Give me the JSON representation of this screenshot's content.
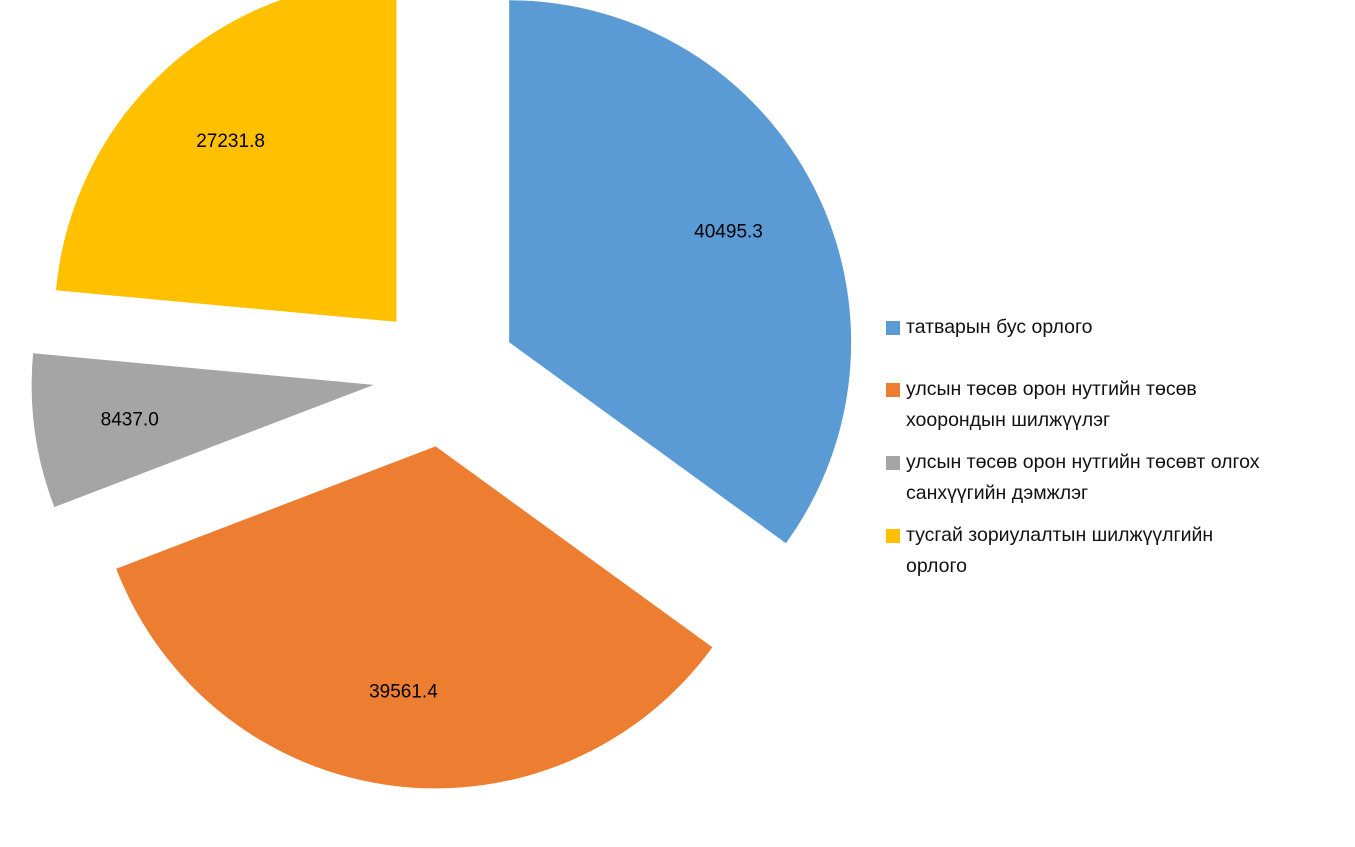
{
  "chart_data": {
    "type": "pie",
    "exploded": true,
    "categories": [
      "татварын бус орлого",
      "улсын төсөв орон нутгийн төсөв хоорондын шилжүүлэг",
      "улсын төсөв орон нутгийн төсөвт олгох санхүүгийн дэмжлэг",
      "тусгай зориулалтын шилжүүлгийн орлого"
    ],
    "values": [
      40495.3,
      39561.4,
      8437.0,
      27231.8
    ],
    "data_labels": [
      "40495.3",
      "39561.4",
      "8437.0",
      "27231.8"
    ],
    "colors": [
      "#5B9BD5",
      "#ED7D31",
      "#A5A5A5",
      "#FFC000"
    ],
    "legend_position": "right",
    "legend_lines": [
      [
        "татварын бус орлого"
      ],
      [
        "улсын төсөв орон нутгийн төсөв",
        "хоорондын шилжүүлэг"
      ],
      [
        "улсын төсөв орон нутгийн төсөвт олгох",
        "санхүүгийн дэмжлэг"
      ],
      [
        "тусгай зориулалтын шилжүүлгийн",
        "орлого"
      ]
    ]
  }
}
